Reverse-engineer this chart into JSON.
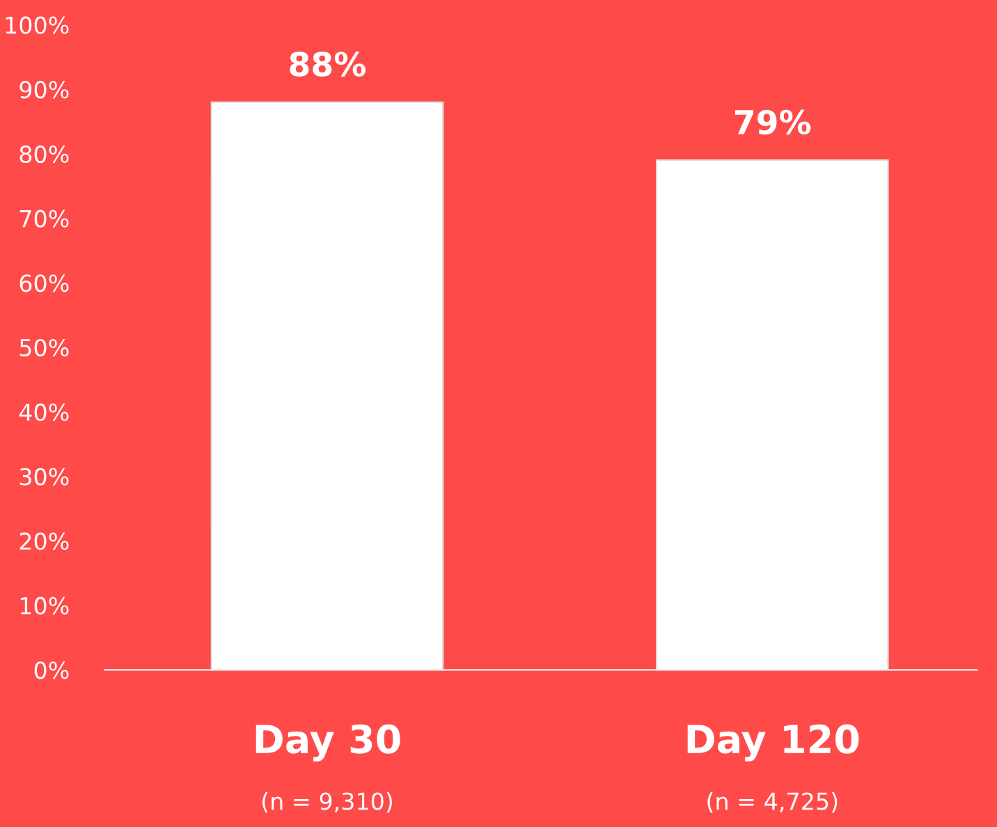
{
  "chart_data": {
    "type": "bar",
    "categories": [
      "Day 30",
      "Day 120"
    ],
    "values": [
      88,
      79
    ],
    "color": "#ffffff",
    "value_labels": [
      "88%",
      "79%"
    ],
    "ylim": [
      0,
      100
    ],
    "yticks": [
      {
        "value": 0,
        "label": "0%"
      },
      {
        "value": 10,
        "label": "10%"
      },
      {
        "value": 20,
        "label": "20%"
      },
      {
        "value": 30,
        "label": "30%"
      },
      {
        "value": 40,
        "label": "40%"
      },
      {
        "value": 50,
        "label": "50%"
      },
      {
        "value": 60,
        "label": "60%"
      },
      {
        "value": 70,
        "label": "70%"
      },
      {
        "value": 80,
        "label": "80%"
      },
      {
        "value": 90,
        "label": "90%"
      },
      {
        "value": 100,
        "label": "100%"
      }
    ],
    "annotations": [
      "(n = 9,310)",
      "(n = 4,725)"
    ],
    "grid": false,
    "legend": false
  }
}
